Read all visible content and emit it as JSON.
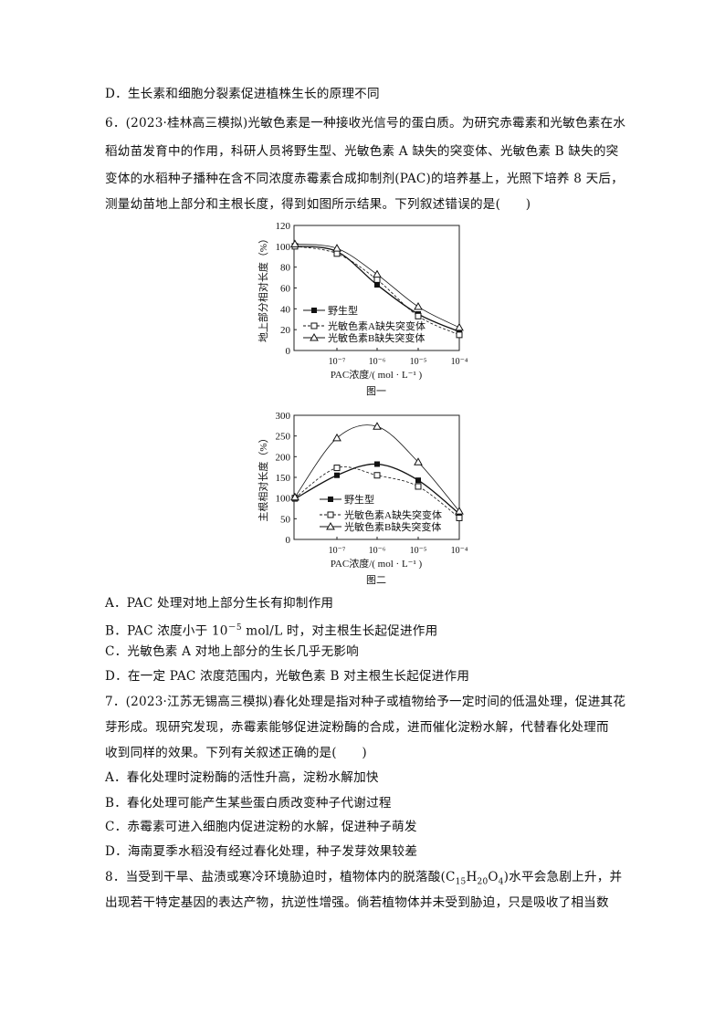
{
  "lines": {
    "q5_d": "D．生长素和细胞分裂素促进植株生长的原理不同",
    "q6_l1": "6．(2023·桂林高三模拟)光敏色素是一种接收光信号的蛋白质。为研究赤霉素和光敏色素在水",
    "q6_l2": "稻幼苗发育中的作用，科研人员将野生型、光敏色素 A 缺失的突变体、光敏色素 B 缺失的突",
    "q6_l3": "变体的水稻种子播种在含不同浓度赤霉素合成抑制剂(PAC)的培养基上，光照下培养 8 天后，",
    "q6_l4": "测量幼苗地上部分和主根长度，得到如图所示结果。下列叙述错误的是(　　)",
    "q6_a": "A．PAC 处理对地上部分生长有抑制作用",
    "q6_b_pre": "B．PAC 浓度小于 10",
    "q6_b_sup": "－5",
    "q6_b_post": " mol/L 时，对主根生长起促进作用",
    "q6_c": "C．光敏色素 A 对地上部分的生长几乎无影响",
    "q6_d": "D．在一定 PAC 浓度范围内，光敏色素 B 对主根生长起促进作用",
    "q7_l1": "7．(2023·江苏无锡高三模拟)春化处理是指对种子或植物给予一定时间的低温处理，促进其花",
    "q7_l2": "芽形成。现研究发现，赤霉素能够促进淀粉酶的合成，进而催化淀粉水解，代替春化处理而",
    "q7_l3": "收到同样的效果。下列有关叙述正确的是(　　)",
    "q7_a": "A．春化处理时淀粉酶的活性升高，淀粉水解加快",
    "q7_b": "B．春化处理可能产生某些蛋白质改变种子代谢过程",
    "q7_c": "C．赤霉素可进入细胞内促进淀粉的水解，促进种子萌发",
    "q7_d": "D．海南夏季水稻没有经过春化处理，种子发芽效果较差",
    "q8_l1_pre": "8．当受到干旱、盐渍或寒冷环境胁迫时，植物体内的脱落酸(C",
    "q8_sub1": "15",
    "q8_h": "H",
    "q8_sub2": "20",
    "q8_o": "O",
    "q8_sub3": "4",
    "q8_l1_post": ")水平会急剧上升，并",
    "q8_l2": "出现若干特定基因的表达产物，抗逆性增强。倘若植物体并未受到胁迫，只是吸收了相当数"
  },
  "chart_data": [
    {
      "type": "line",
      "title": "图一",
      "xlabel": "PAC浓度/( mol · L⁻¹ )",
      "ylabel": "地上部分相对长度（%）",
      "categories": [
        "0",
        "10⁻⁷",
        "10⁻⁶",
        "10⁻⁵",
        "10⁻⁴"
      ],
      "tick_labels": [
        "",
        "10⁻⁷",
        "10⁻⁶",
        "10⁻⁵",
        "10⁻⁴"
      ],
      "yticks": [
        0,
        20,
        40,
        60,
        80,
        100,
        120
      ],
      "ylim": [
        0,
        120
      ],
      "legend": "bottom-left",
      "grid": false,
      "series": [
        {
          "name": "野生型",
          "marker": "filled-square",
          "dash": "solid",
          "values": [
            100,
            95,
            63,
            35,
            18
          ]
        },
        {
          "name": "光敏色素A缺失突变体",
          "marker": "open-square",
          "dash": "dashed",
          "values": [
            100,
            93,
            68,
            33,
            15
          ]
        },
        {
          "name": "光敏色素B缺失突变体",
          "marker": "open-triangle",
          "dash": "solid",
          "values": [
            102,
            98,
            73,
            42,
            22
          ]
        }
      ]
    },
    {
      "type": "line",
      "title": "图二",
      "xlabel": "PAC浓度/( mol · L⁻¹ )",
      "ylabel": "主根相对长度（%）",
      "categories": [
        "0",
        "10⁻⁷",
        "10⁻⁶",
        "10⁻⁵",
        "10⁻⁴"
      ],
      "tick_labels": [
        "",
        "10⁻⁷",
        "10⁻⁶",
        "10⁻⁵",
        "10⁻⁴"
      ],
      "yticks": [
        0,
        50,
        100,
        150,
        200,
        250,
        300
      ],
      "ylim": [
        0,
        300
      ],
      "legend": "bottom-center",
      "grid": false,
      "series": [
        {
          "name": "野生型",
          "marker": "filled-square",
          "dash": "solid",
          "values": [
            98,
            155,
            182,
            143,
            62
          ]
        },
        {
          "name": "光敏色素A缺失突变体",
          "marker": "open-square",
          "dash": "dashed",
          "values": [
            100,
            173,
            155,
            128,
            52
          ]
        },
        {
          "name": "光敏色素B缺失突变体",
          "marker": "open-triangle",
          "dash": "solid",
          "values": [
            102,
            245,
            273,
            187,
            68
          ]
        }
      ]
    }
  ]
}
